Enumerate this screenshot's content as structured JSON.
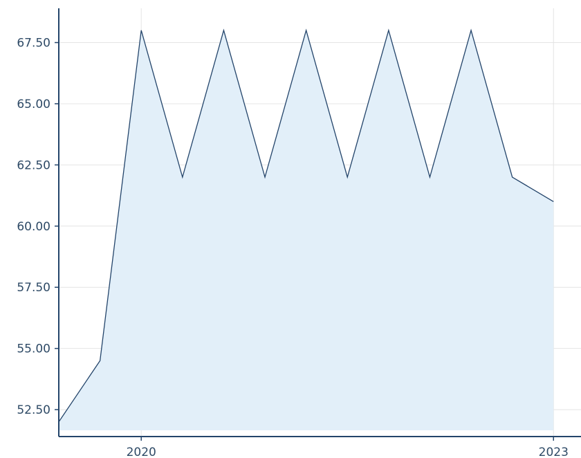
{
  "chart_data": {
    "type": "area",
    "title": "",
    "xlabel": "",
    "ylabel": "",
    "x_tick_labels": [
      "2020",
      "2023"
    ],
    "x_tick_values": [
      2020,
      2023
    ],
    "y_tick_labels": [
      "52.50",
      "55.00",
      "57.50",
      "60.00",
      "62.50",
      "65.00",
      "67.50"
    ],
    "y_tick_values": [
      52.5,
      55.0,
      57.5,
      60.0,
      62.5,
      65.0,
      67.5
    ],
    "xlim": [
      2019.4,
      2023.2
    ],
    "ylim": [
      51.4,
      68.9
    ],
    "grid": true,
    "legend": "none",
    "series": [
      {
        "x": [
          2019.4,
          2019.7,
          2020.0,
          2020.3,
          2020.6,
          2020.9,
          2021.2,
          2021.5,
          2021.8,
          2022.1,
          2022.4,
          2022.7,
          2023.0
        ],
        "y": [
          52.0,
          54.5,
          68.0,
          62.0,
          68.0,
          62.0,
          68.0,
          62.0,
          68.0,
          62.0,
          68.0,
          62.0,
          61.0
        ]
      }
    ],
    "colors": {
      "fill": "#e2eff9",
      "line": "#23446a",
      "axis": "#23446a",
      "grid": "#e4e4e4",
      "tick_text": "#2e4a66"
    }
  }
}
